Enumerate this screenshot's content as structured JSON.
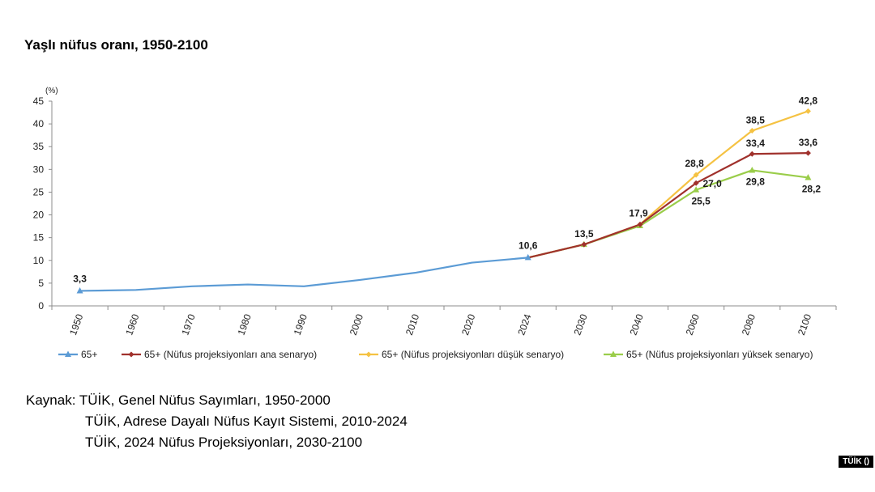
{
  "title": "Yaşlı nüfus oranı, 1950-2100",
  "chart_data": {
    "type": "line",
    "title": "Yaşlı nüfus oranı, 1950-2100",
    "ylabel": "(%)",
    "xlabel": "",
    "ylim": [
      0,
      45
    ],
    "yticks": [
      0,
      5,
      10,
      15,
      20,
      25,
      30,
      35,
      40,
      45
    ],
    "grid": false,
    "legend_position": "bottom",
    "categories": [
      "1950",
      "1960",
      "1970",
      "1980",
      "1990",
      "2000",
      "2010",
      "2020",
      "2024",
      "2030",
      "2040",
      "2060",
      "2080",
      "2100"
    ],
    "series": [
      {
        "name": "65+",
        "color": "#5b9bd5",
        "marker": "triangle",
        "values": [
          3.3,
          3.5,
          4.3,
          4.7,
          4.3,
          5.7,
          7.3,
          9.5,
          10.6,
          null,
          null,
          null,
          null,
          null
        ],
        "labels": [
          {
            "category": "1950",
            "text": "3,3"
          },
          {
            "category": "2024",
            "text": "10,6"
          }
        ]
      },
      {
        "name": "65+ (Nüfus projeksiyonları ana senaryo)",
        "color": "#a0312c",
        "marker": "diamond",
        "values": [
          null,
          null,
          null,
          null,
          null,
          null,
          null,
          null,
          10.6,
          13.5,
          17.9,
          27.0,
          33.4,
          33.6
        ],
        "labels": [
          {
            "category": "2030",
            "text": "13,5"
          },
          {
            "category": "2040",
            "text": "17,9"
          },
          {
            "category": "2060",
            "text": "27,0"
          },
          {
            "category": "2080",
            "text": "33,4"
          },
          {
            "category": "2100",
            "text": "33,6"
          }
        ]
      },
      {
        "name": "65+ (Nüfus projeksiyonları düşük senaryo)",
        "color": "#f5c242",
        "marker": "diamond",
        "values": [
          null,
          null,
          null,
          null,
          null,
          null,
          null,
          null,
          10.6,
          13.5,
          17.9,
          28.8,
          38.5,
          42.8
        ],
        "labels": [
          {
            "category": "2060",
            "text": "28,8"
          },
          {
            "category": "2080",
            "text": "38,5"
          },
          {
            "category": "2100",
            "text": "42,8"
          }
        ]
      },
      {
        "name": "65+ (Nüfus projeksiyonları yüksek senaryo)",
        "color": "#9acd4a",
        "marker": "triangle",
        "values": [
          null,
          null,
          null,
          null,
          null,
          null,
          null,
          null,
          10.6,
          13.5,
          17.6,
          25.5,
          29.8,
          28.2
        ],
        "labels": [
          {
            "category": "2060",
            "text": "25,5"
          },
          {
            "category": "2080",
            "text": "29,8"
          },
          {
            "category": "2100",
            "text": "28,2"
          }
        ]
      }
    ]
  },
  "source": {
    "line1": "Kaynak: TÜİK, Genel Nüfus Sayımları, 1950-2000",
    "line2": "TÜİK, Adrese Dayalı Nüfus Kayıt Sistemi, 2010-2024",
    "line3": "TÜİK, 2024 Nüfus Projeksiyonları, 2030-2100"
  },
  "logo": "TÜİK ()"
}
